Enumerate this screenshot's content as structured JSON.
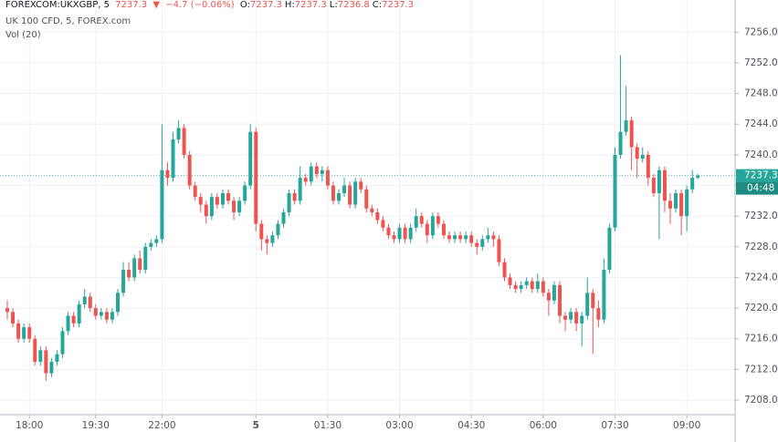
{
  "header": {
    "symbol": "FOREXCOM:UKXGBP, 5",
    "price": "7237.3",
    "change": "−4.7 (−0.06%)",
    "ohlc": [
      {
        "label": "O:",
        "value": "7237.3"
      },
      {
        "label": "H:",
        "value": "7237.3"
      },
      {
        "label": "L:",
        "value": "7236.8"
      },
      {
        "label": "C:",
        "value": "7237.3"
      }
    ],
    "title": "UK 100 CFD, 5, FOREX.com",
    "volume": "Vol (20)"
  },
  "chart_data": {
    "type": "candlestick",
    "up_color": "#26a69a",
    "down_color": "#ef5350",
    "grid": true,
    "ylim": [
      7206.1,
      7260.2
    ],
    "yticks": [
      {
        "value": 7208,
        "label": "7208.0"
      },
      {
        "value": 7212,
        "label": "7212.0"
      },
      {
        "value": 7216,
        "label": "7216.0"
      },
      {
        "value": 7220,
        "label": "7220.0"
      },
      {
        "value": 7224,
        "label": "7224.0"
      },
      {
        "value": 7228,
        "label": "7228.0"
      },
      {
        "value": 7232,
        "label": "7232.0"
      },
      {
        "value": 7236,
        "label": "7236.0"
      },
      {
        "value": 7240,
        "label": "7240.0"
      },
      {
        "value": 7244,
        "label": "7244.0"
      },
      {
        "value": 7248,
        "label": "7248.0"
      },
      {
        "value": 7252,
        "label": "7252.0"
      },
      {
        "value": 7256,
        "label": "7256.0"
      }
    ],
    "last_price": {
      "value": 7237.3,
      "label": "7237.3"
    },
    "countdown": "04:48",
    "categories": [
      null,
      null,
      null,
      null,
      "18:00",
      null,
      null,
      null,
      null,
      null,
      null,
      null,
      null,
      null,
      null,
      null,
      "19:30",
      null,
      null,
      null,
      null,
      null,
      null,
      null,
      null,
      null,
      null,
      null,
      "22:00",
      null,
      null,
      null,
      null,
      null,
      null,
      null,
      null,
      null,
      null,
      null,
      null,
      null,
      null,
      null,
      null,
      "5",
      null,
      null,
      null,
      null,
      null,
      null,
      null,
      null,
      null,
      null,
      null,
      null,
      "01:30",
      null,
      null,
      null,
      null,
      null,
      null,
      null,
      null,
      null,
      null,
      null,
      null,
      "03:00",
      null,
      null,
      null,
      null,
      null,
      null,
      null,
      null,
      null,
      null,
      null,
      null,
      "04:30",
      null,
      null,
      null,
      null,
      null,
      null,
      null,
      null,
      null,
      null,
      null,
      null,
      "06:00",
      null,
      null,
      null,
      null,
      null,
      null,
      null,
      null,
      null,
      null,
      null,
      null,
      "07:30",
      null,
      null,
      null,
      null,
      null,
      null,
      null,
      null,
      null,
      null,
      null,
      null,
      "09:00",
      null,
      null
    ],
    "open": [
      7220,
      7219.5,
      7218,
      7216,
      7217.5,
      7216,
      7213,
      7214.5,
      7211.5,
      7213,
      7214,
      7217,
      7219,
      7218,
      7220.5,
      7221.5,
      7220,
      7219,
      7219.5,
      7218.5,
      7219.5,
      7222,
      7225,
      7224,
      7226.5,
      7225,
      7228,
      7228.5,
      7229,
      7238,
      7237,
      7242,
      7243.5,
      7240,
      7236,
      7234.5,
      7233.5,
      7232,
      7234.5,
      7233.5,
      7235,
      7234,
      7232.5,
      7234,
      7236,
      7243,
      7231,
      7229,
      7228.5,
      7229.5,
      7231,
      7232.5,
      7235,
      7234,
      7237,
      7236.5,
      7238.5,
      7237.5,
      7238,
      7236,
      7234,
      7235,
      7236,
      7233.5,
      7236.5,
      7235.5,
      7233,
      7232.5,
      7231.5,
      7230.5,
      7229.5,
      7229,
      7230.5,
      7229,
      7230.5,
      7232,
      7231,
      7229.5,
      7232,
      7231,
      7229.5,
      7229,
      7229.5,
      7229,
      7229.5,
      7228.5,
      7228,
      7229,
      7229.5,
      7229,
      7226,
      7224,
      7223,
      7222.5,
      7223,
      7223.5,
      7222.5,
      7223.5,
      7222,
      7221,
      7223,
      7219,
      7218.5,
      7219.5,
      7218,
      7219,
      7222,
      7220,
      7218.5,
      7225,
      7230.5,
      7240,
      7243,
      7244.5,
      7241,
      7239.5,
      7240,
      7237,
      7235,
      7238,
      7234,
      7233,
      7235,
      7232,
      7235.5,
      7237
    ],
    "high": [
      7221,
      7220,
      7218.5,
      7218,
      7218,
      7216.5,
      7215,
      7215,
      7213.5,
      7214.5,
      7217.5,
      7219.5,
      7219.5,
      7221,
      7222.5,
      7222,
      7220.5,
      7220,
      7220,
      7220,
      7222.5,
      7226,
      7226,
      7227,
      7227.5,
      7228.5,
      7229,
      7229.5,
      7244,
      7239,
      7243,
      7244.5,
      7244,
      7240.5,
      7236.5,
      7235,
      7234,
      7235,
      7235,
      7235.5,
      7235.5,
      7234.5,
      7234.5,
      7236.5,
      7244,
      7243.5,
      7231.5,
      7229.5,
      7230,
      7231.5,
      7233,
      7235.5,
      7235.5,
      7238.5,
      7237.5,
      7239,
      7239,
      7238.5,
      7238.5,
      7236.5,
      7235.5,
      7237,
      7236.5,
      7237,
      7237,
      7236,
      7233.5,
      7233,
      7232,
      7231,
      7230,
      7231,
      7231,
      7231,
      7233,
      7232.5,
      7231.5,
      7232.5,
      7232.5,
      7231.5,
      7230,
      7230,
      7230,
      7230,
      7230,
      7229,
      7229.5,
      7230.5,
      7230,
      7229.5,
      7226.5,
      7224.5,
      7223.5,
      7223.5,
      7224,
      7224,
      7224.5,
      7224,
      7222.5,
      7223.5,
      7223.5,
      7219.5,
      7220,
      7220,
      7219.5,
      7224,
      7222.5,
      7221,
      7226.5,
      7231,
      7241,
      7253,
      7249,
      7245,
      7241.5,
      7241,
      7240.5,
      7237.5,
      7238.5,
      7238.5,
      7235,
      7235.5,
      7235.5,
      7236,
      7238,
      7237.5
    ],
    "low": [
      7218.5,
      7217.5,
      7215.5,
      7215.5,
      7215.5,
      7212.5,
      7212.5,
      7210.5,
      7211,
      7212.5,
      7213.5,
      7216.5,
      7217.5,
      7217.5,
      7220,
      7219.5,
      7218.5,
      7218.5,
      7218,
      7218,
      7219,
      7221.5,
      7223.5,
      7223.5,
      7224.5,
      7224.5,
      7227.5,
      7228,
      7228.5,
      7236,
      7236.5,
      7241.5,
      7239.5,
      7235.5,
      7234,
      7232.5,
      7231,
      7231.5,
      7233,
      7233,
      7233.5,
      7231.5,
      7232,
      7233.5,
      7235.5,
      7230,
      7227.5,
      7227,
      7228,
      7229,
      7230.5,
      7232,
      7233.5,
      7233.5,
      7236,
      7236,
      7237,
      7236.5,
      7235.5,
      7233.5,
      7233.5,
      7234.5,
      7233,
      7233,
      7235,
      7232.5,
      7232,
      7231,
      7230,
      7229,
      7228.5,
      7228.5,
      7228.5,
      7228.5,
      7230,
      7230.5,
      7228.5,
      7229,
      7230.5,
      7229,
      7228.5,
      7228.5,
      7228.5,
      7228.5,
      7228,
      7227,
      7227.5,
      7228.5,
      7228,
      7225.5,
      7223.5,
      7222.5,
      7222,
      7222,
      7222.5,
      7222,
      7222,
      7221.5,
      7219,
      7220.5,
      7218,
      7217,
      7218,
      7217,
      7215,
      7218.5,
      7214,
      7217.5,
      7218,
      7224.5,
      7230,
      7239.5,
      7242.5,
      7238,
      7237,
      7239,
      7236,
      7234.5,
      7229,
      7232.5,
      7231,
      7232.5,
      7229.5,
      7230,
      7235,
      7236.8
    ],
    "close": [
      7219.5,
      7218,
      7216,
      7217.5,
      7216,
      7213,
      7214.5,
      7211.5,
      7213,
      7214,
      7217,
      7219,
      7218,
      7220.5,
      7221.5,
      7220,
      7219,
      7219.5,
      7218.5,
      7219.5,
      7222,
      7225,
      7224,
      7226.5,
      7225,
      7228,
      7228.5,
      7229,
      7238,
      7237,
      7242,
      7243.5,
      7240,
      7236,
      7234.5,
      7233.5,
      7232,
      7234.5,
      7233.5,
      7235,
      7234,
      7232.5,
      7234,
      7236,
      7243,
      7231,
      7229,
      7228.5,
      7229.5,
      7231,
      7232.5,
      7235,
      7234,
      7237,
      7236.5,
      7238.5,
      7237.5,
      7238,
      7236,
      7234,
      7235,
      7236,
      7233.5,
      7236.5,
      7235.5,
      7233,
      7232.5,
      7231.5,
      7230.5,
      7229.5,
      7229,
      7230.5,
      7229,
      7230.5,
      7232,
      7231,
      7229.5,
      7232,
      7231,
      7229.5,
      7229,
      7229.5,
      7229,
      7229.5,
      7228.5,
      7228,
      7229,
      7229.5,
      7229,
      7226,
      7224,
      7223,
      7222.5,
      7223,
      7223.5,
      7222.5,
      7223.5,
      7222,
      7221,
      7223,
      7219,
      7218.5,
      7219.5,
      7218,
      7219,
      7222,
      7220,
      7218.5,
      7225,
      7230.5,
      7240,
      7243,
      7244.5,
      7241,
      7239.5,
      7240,
      7237,
      7235,
      7238,
      7234,
      7233,
      7235,
      7232,
      7235.5,
      7237,
      7237.3
    ]
  }
}
